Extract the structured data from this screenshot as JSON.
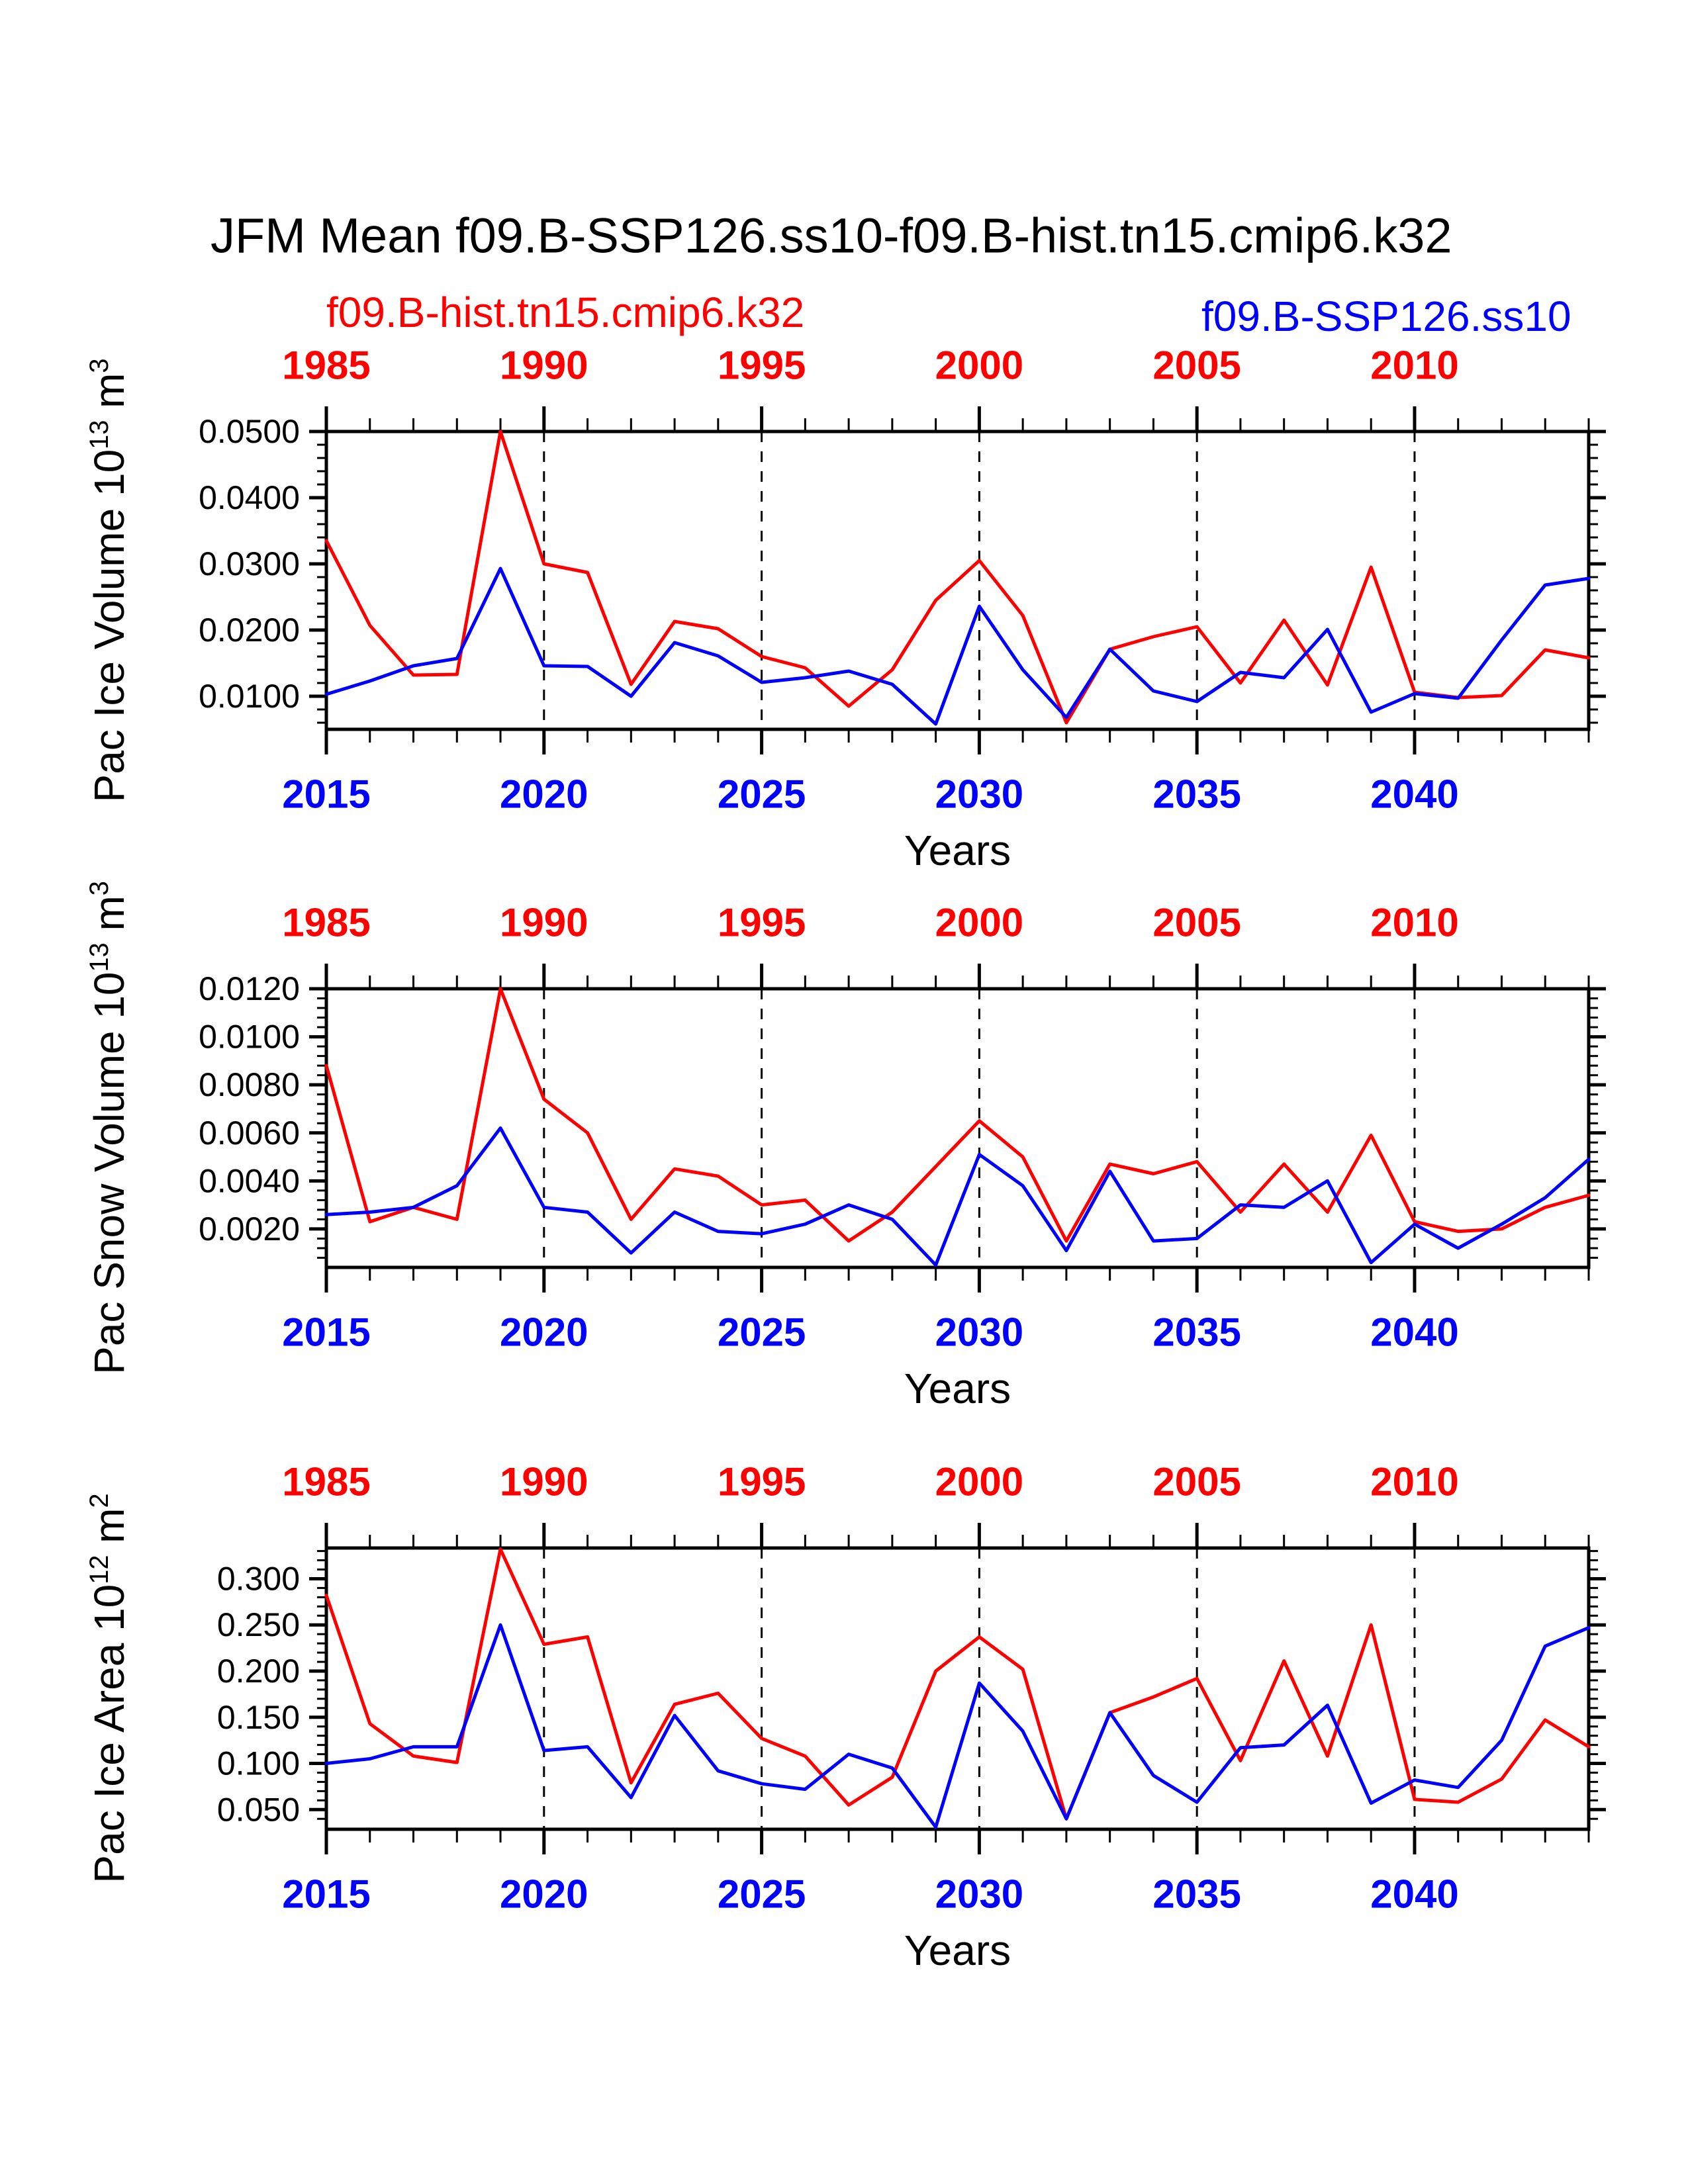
{
  "title": "JFM Mean f09.B-SSP126.ss10-f09.B-hist.tn15.cmip6.k32",
  "legend": {
    "hist_label": "f09.B-hist.tn15.cmip6.k32",
    "ssp_label": "f09.B-SSP126.ss10",
    "hist_color": "#ff0000",
    "ssp_color": "#0000ff"
  },
  "axes": {
    "xlabel": "Years",
    "top_label_years": [
      "1985",
      "1990",
      "1995",
      "2000",
      "2005",
      "2010"
    ],
    "bottom_label_years": [
      "2015",
      "2020",
      "2025",
      "2030",
      "2035",
      "2040"
    ],
    "grid_years": [
      2020,
      2025,
      2030,
      2035,
      2040
    ],
    "x_start_bottom": 2015,
    "x_end_bottom": 2044,
    "x_start_top": 1985,
    "x_end_top": 2014,
    "top_axis_color": "#ff0000",
    "bottom_axis_color": "#0000ff"
  },
  "chart_data": [
    {
      "type": "line",
      "ylabel_parts": {
        "prefix": "Pac Ice Volume 10",
        "exponent": "13",
        "unit": " m",
        "unit_exponent": "3"
      },
      "ylim": [
        0.005,
        0.05
      ],
      "ytick_values": [
        0.01,
        0.02,
        0.03,
        0.04,
        0.05
      ],
      "ytick_labels": [
        "0.0100",
        "0.0200",
        "0.0300",
        "0.0400",
        "0.0500"
      ],
      "minor_step": 0.002,
      "series": [
        {
          "name": "f09.B-hist.tn15.cmip6.k32",
          "color": "#ff0000",
          "axis": "top",
          "x_offset": 30,
          "years": [
            1985,
            1986,
            1987,
            1988,
            1989,
            1990,
            1991,
            1992,
            1993,
            1994,
            1995,
            1996,
            1997,
            1998,
            1999,
            2000,
            2001,
            2002,
            2003,
            2004,
            2005,
            2006,
            2007,
            2008,
            2009,
            2010,
            2011,
            2012,
            2013,
            2014
          ],
          "values": [
            0.0335,
            0.0207,
            0.0132,
            0.0133,
            0.05,
            0.03,
            0.0287,
            0.0118,
            0.0213,
            0.0202,
            0.016,
            0.0143,
            0.0085,
            0.014,
            0.0245,
            0.0305,
            0.0222,
            0.006,
            0.0171,
            0.019,
            0.0205,
            0.012,
            0.0215,
            0.0117,
            0.0295,
            0.0106,
            0.0098,
            0.0101,
            0.017,
            0.0158
          ]
        },
        {
          "name": "f09.B-SSP126.ss10",
          "color": "#0000ff",
          "axis": "bottom",
          "x_offset": 0,
          "years": [
            2015,
            2016,
            2017,
            2018,
            2019,
            2020,
            2021,
            2022,
            2023,
            2024,
            2025,
            2026,
            2027,
            2028,
            2029,
            2030,
            2031,
            2032,
            2033,
            2034,
            2035,
            2036,
            2037,
            2038,
            2039,
            2040,
            2041,
            2042,
            2043,
            2044
          ],
          "values": [
            0.0103,
            0.0123,
            0.0146,
            0.0157,
            0.0293,
            0.0146,
            0.0145,
            0.01,
            0.0181,
            0.0161,
            0.0121,
            0.0128,
            0.0138,
            0.0118,
            0.0058,
            0.0236,
            0.014,
            0.0068,
            0.0171,
            0.0108,
            0.0092,
            0.0136,
            0.0128,
            0.0201,
            0.0076,
            0.0104,
            0.0097,
            0.0185,
            0.0268,
            0.0278
          ]
        }
      ]
    },
    {
      "type": "line",
      "ylabel_parts": {
        "prefix": "Pac Snow Volume 10",
        "exponent": "13",
        "unit": " m",
        "unit_exponent": "3"
      },
      "ylim": [
        0.0004,
        0.012
      ],
      "ytick_values": [
        0.002,
        0.004,
        0.006,
        0.008,
        0.01,
        0.012
      ],
      "ytick_labels": [
        "0.0020",
        "0.0040",
        "0.0060",
        "0.0080",
        "0.0100",
        "0.0120"
      ],
      "minor_step": 0.0004,
      "series": [
        {
          "name": "f09.B-hist.tn15.cmip6.k32",
          "color": "#ff0000",
          "axis": "top",
          "x_offset": 30,
          "years": [
            1985,
            1986,
            1987,
            1988,
            1989,
            1990,
            1991,
            1992,
            1993,
            1994,
            1995,
            1996,
            1997,
            1998,
            1999,
            2000,
            2001,
            2002,
            2003,
            2004,
            2005,
            2006,
            2007,
            2008,
            2009,
            2010,
            2011,
            2012,
            2013,
            2014
          ],
          "values": [
            0.0088,
            0.0023,
            0.0029,
            0.0024,
            0.012,
            0.0074,
            0.006,
            0.0024,
            0.0045,
            0.0042,
            0.003,
            0.0032,
            0.0015,
            0.0027,
            0.0046,
            0.0065,
            0.005,
            0.0015,
            0.0047,
            0.0043,
            0.0048,
            0.0027,
            0.0047,
            0.0027,
            0.0059,
            0.0023,
            0.0019,
            0.002,
            0.0029,
            0.0034
          ]
        },
        {
          "name": "f09.B-SSP126.ss10",
          "color": "#0000ff",
          "axis": "bottom",
          "x_offset": 0,
          "years": [
            2015,
            2016,
            2017,
            2018,
            2019,
            2020,
            2021,
            2022,
            2023,
            2024,
            2025,
            2026,
            2027,
            2028,
            2029,
            2030,
            2031,
            2032,
            2033,
            2034,
            2035,
            2036,
            2037,
            2038,
            2039,
            2040,
            2041,
            2042,
            2043,
            2044
          ],
          "values": [
            0.0026,
            0.0027,
            0.0029,
            0.0038,
            0.0062,
            0.0029,
            0.0027,
            0.001,
            0.0027,
            0.0019,
            0.0018,
            0.0022,
            0.003,
            0.0024,
            0.0005,
            0.0051,
            0.0038,
            0.0011,
            0.0044,
            0.0015,
            0.0016,
            0.003,
            0.0029,
            0.004,
            0.0006,
            0.0022,
            0.0012,
            0.0022,
            0.0033,
            0.0049
          ]
        }
      ]
    },
    {
      "type": "line",
      "ylabel_parts": {
        "prefix": "Pac Ice Area 10",
        "exponent": "12",
        "unit": " m",
        "unit_exponent": "2"
      },
      "ylim": [
        0.0287,
        0.3333
      ],
      "ytick_values": [
        0.05,
        0.1,
        0.15,
        0.2,
        0.25,
        0.3
      ],
      "ytick_labels": [
        "0.050",
        "0.100",
        "0.150",
        "0.200",
        "0.250",
        "0.300"
      ],
      "minor_step": 0.01,
      "series": [
        {
          "name": "f09.B-hist.tn15.cmip6.k32",
          "color": "#ff0000",
          "axis": "top",
          "x_offset": 30,
          "years": [
            1985,
            1986,
            1987,
            1988,
            1989,
            1990,
            1991,
            1992,
            1993,
            1994,
            1995,
            1996,
            1997,
            1998,
            1999,
            2000,
            2001,
            2002,
            2003,
            2004,
            2005,
            2006,
            2007,
            2008,
            2009,
            2010,
            2011,
            2012,
            2013,
            2014
          ],
          "values": [
            0.282,
            0.143,
            0.108,
            0.101,
            0.332,
            0.229,
            0.237,
            0.079,
            0.164,
            0.176,
            0.127,
            0.108,
            0.055,
            0.085,
            0.2,
            0.237,
            0.202,
            0.04,
            0.155,
            0.172,
            0.192,
            0.103,
            0.211,
            0.108,
            0.25,
            0.061,
            0.058,
            0.083,
            0.147,
            0.118
          ]
        },
        {
          "name": "f09.B-SSP126.ss10",
          "color": "#0000ff",
          "axis": "bottom",
          "x_offset": 0,
          "years": [
            2015,
            2016,
            2017,
            2018,
            2019,
            2020,
            2021,
            2022,
            2023,
            2024,
            2025,
            2026,
            2027,
            2028,
            2029,
            2030,
            2031,
            2032,
            2033,
            2034,
            2035,
            2036,
            2037,
            2038,
            2039,
            2040,
            2041,
            2042,
            2043,
            2044
          ],
          "values": [
            0.1,
            0.105,
            0.118,
            0.118,
            0.25,
            0.114,
            0.118,
            0.063,
            0.152,
            0.092,
            0.078,
            0.072,
            0.11,
            0.095,
            0.031,
            0.187,
            0.135,
            0.04,
            0.155,
            0.087,
            0.058,
            0.117,
            0.12,
            0.163,
            0.057,
            0.082,
            0.074,
            0.125,
            0.227,
            0.247
          ]
        }
      ]
    }
  ]
}
